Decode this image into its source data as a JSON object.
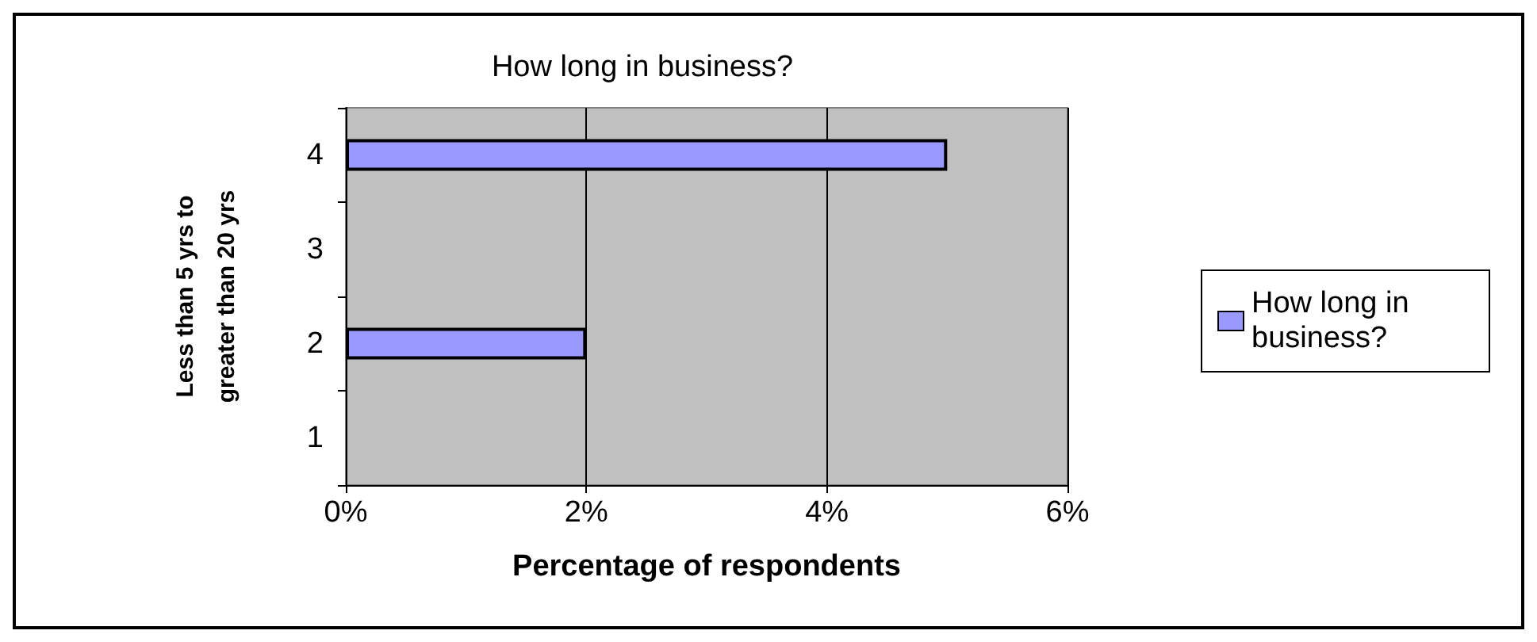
{
  "chart_data": {
    "type": "bar",
    "orientation": "horizontal",
    "title": "How long in business?",
    "xlabel": "Percentage of respondents",
    "ylabel": "Less than 5 yrs to\ngreater than 20 yrs",
    "categories": [
      "4",
      "3",
      "2",
      "1"
    ],
    "series": [
      {
        "name": "How long in business?",
        "color": "#9999ff",
        "values": [
          5,
          0,
          2,
          0
        ]
      }
    ],
    "xlim": [
      0,
      6
    ],
    "xticks": [
      {
        "value": 0,
        "label": "0%"
      },
      {
        "value": 2,
        "label": "2%"
      },
      {
        "value": 4,
        "label": "4%"
      },
      {
        "value": 6,
        "label": "6%"
      }
    ],
    "grid": "x",
    "legend": "right"
  }
}
